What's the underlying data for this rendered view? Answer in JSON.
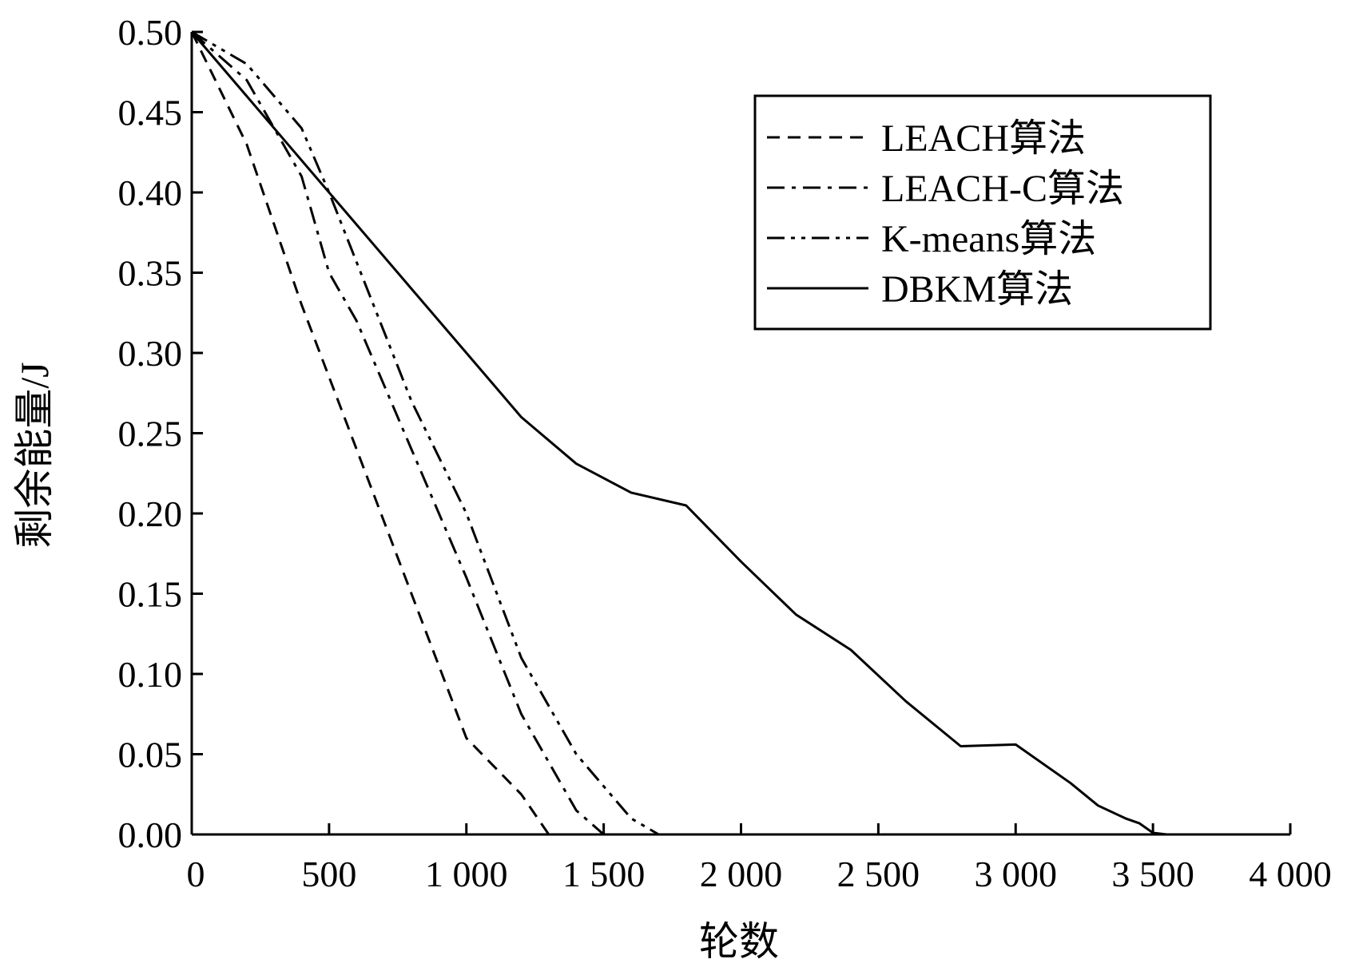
{
  "chart_data": {
    "type": "line",
    "title": "",
    "xlabel": "轮数",
    "ylabel": "剩余能量/J",
    "xlim": [
      0,
      4000
    ],
    "ylim": [
      0,
      0.5
    ],
    "x_ticks": [
      0,
      500,
      1000,
      1500,
      2000,
      2500,
      3000,
      3500,
      4000
    ],
    "x_tick_labels": [
      "0",
      "500",
      "1 000",
      "1 500",
      "2 000",
      "2 500",
      "3 000",
      "3 500",
      "4 000"
    ],
    "y_ticks": [
      0,
      0.05,
      0.1,
      0.15,
      0.2,
      0.25,
      0.3,
      0.35,
      0.4,
      0.45,
      0.5
    ],
    "y_tick_labels": [
      "0.00",
      "0.05",
      "0.10",
      "0.15",
      "0.20",
      "0.25",
      "0.30",
      "0.35",
      "0.40",
      "0.45",
      "0.50"
    ],
    "grid": false,
    "legend_position": "top-right",
    "series": [
      {
        "name": "LEACH算法",
        "dash": "dashed",
        "points": [
          [
            0,
            0.5
          ],
          [
            200,
            0.43
          ],
          [
            400,
            0.33
          ],
          [
            600,
            0.24
          ],
          [
            800,
            0.15
          ],
          [
            1000,
            0.06
          ],
          [
            1200,
            0.025
          ],
          [
            1300,
            0
          ]
        ]
      },
      {
        "name": "LEACH-C算法",
        "dash": "dash-dot",
        "points": [
          [
            0,
            0.5
          ],
          [
            200,
            0.47
          ],
          [
            400,
            0.41
          ],
          [
            500,
            0.35
          ],
          [
            600,
            0.32
          ],
          [
            800,
            0.24
          ],
          [
            1000,
            0.16
          ],
          [
            1200,
            0.075
          ],
          [
            1400,
            0.015
          ],
          [
            1500,
            0
          ]
        ]
      },
      {
        "name": "K-means算法",
        "dash": "dash-dot-dot",
        "points": [
          [
            0,
            0.5
          ],
          [
            200,
            0.48
          ],
          [
            400,
            0.44
          ],
          [
            500,
            0.4
          ],
          [
            800,
            0.27
          ],
          [
            1000,
            0.2
          ],
          [
            1200,
            0.11
          ],
          [
            1400,
            0.05
          ],
          [
            1600,
            0.01
          ],
          [
            1700,
            0
          ]
        ]
      },
      {
        "name": "DBKM算法",
        "dash": "solid",
        "points": [
          [
            0,
            0.5
          ],
          [
            200,
            0.46
          ],
          [
            400,
            0.42
          ],
          [
            800,
            0.34
          ],
          [
            1000,
            0.3
          ],
          [
            1200,
            0.26
          ],
          [
            1400,
            0.231
          ],
          [
            1600,
            0.213
          ],
          [
            1800,
            0.205
          ],
          [
            2000,
            0.17
          ],
          [
            2200,
            0.137
          ],
          [
            2400,
            0.115
          ],
          [
            2600,
            0.083
          ],
          [
            2800,
            0.055
          ],
          [
            3000,
            0.056
          ],
          [
            3200,
            0.032
          ],
          [
            3300,
            0.018
          ],
          [
            3400,
            0.01
          ],
          [
            3450,
            0.007
          ],
          [
            3500,
            0.001
          ],
          [
            3550,
            0
          ]
        ]
      }
    ]
  }
}
